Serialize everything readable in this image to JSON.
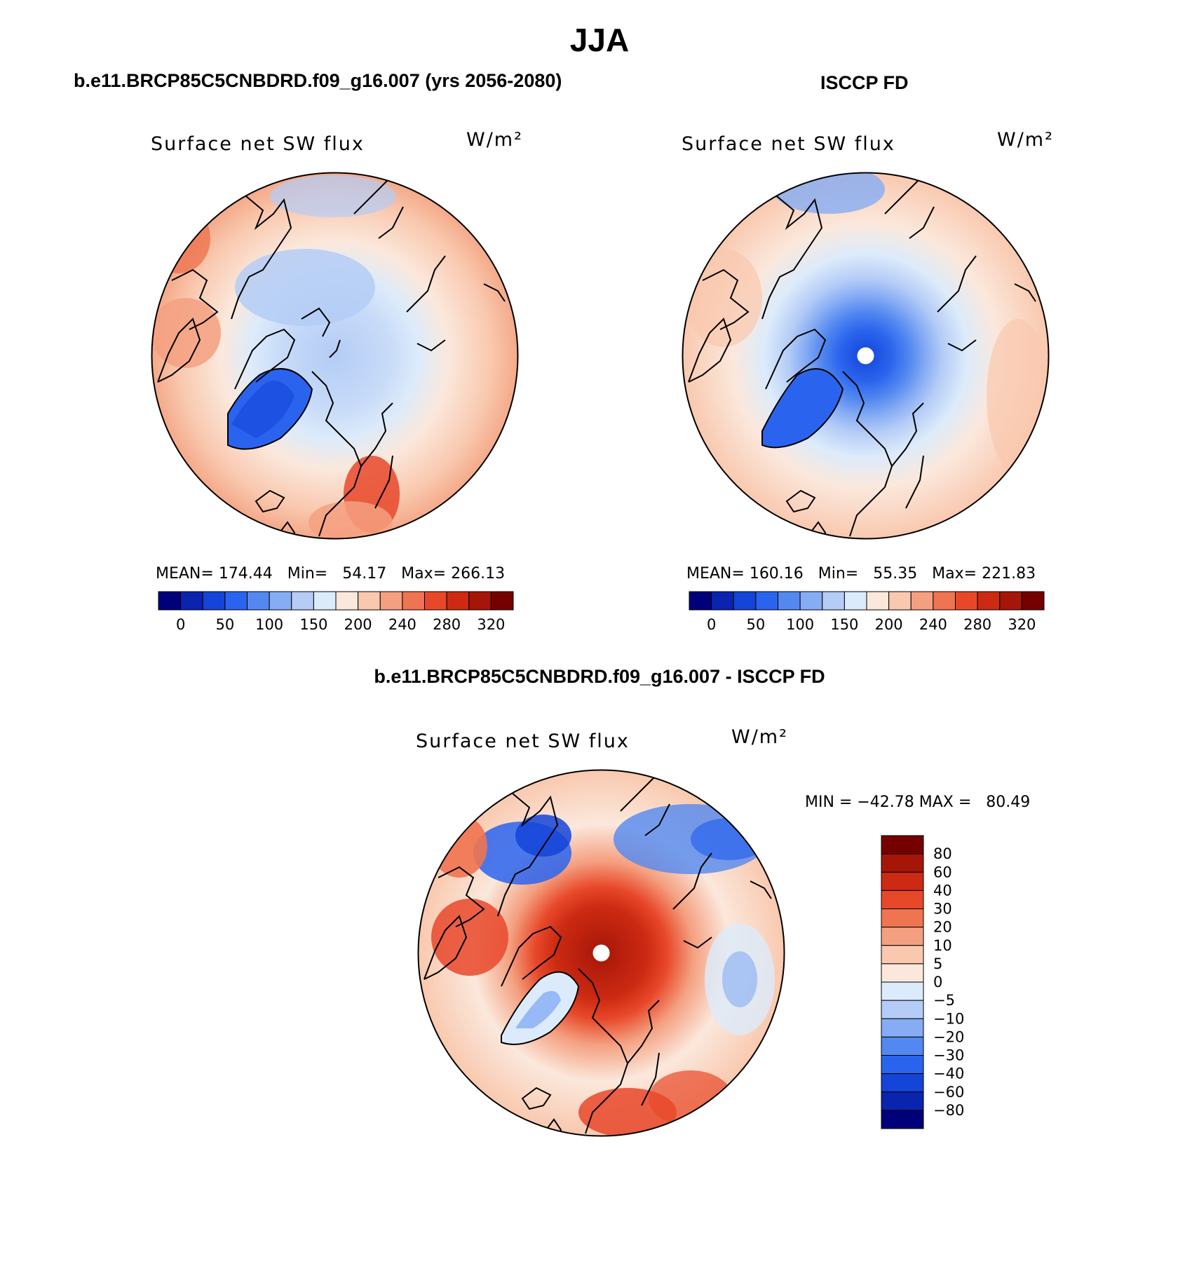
{
  "figure_title": "JJA",
  "panels": [
    {
      "title": "b.e11.BRCP85C5CNBDRD.f09_g16.007 (yrs 2056-2080)",
      "variable": "Surface net SW flux",
      "units": "W/m²",
      "stats": "MEAN= 174.44   Min=   54.17   Max= 266.13",
      "colorbar_labels": [
        "0",
        "50",
        "100",
        "150",
        "200",
        "240",
        "280",
        "320"
      ]
    },
    {
      "title": "ISCCP FD",
      "variable": "Surface net SW flux",
      "units": "W/m²",
      "stats": "MEAN= 160.16   Min=   55.35   Max= 221.83",
      "colorbar_labels": [
        "0",
        "50",
        "100",
        "150",
        "200",
        "240",
        "280",
        "320"
      ]
    },
    {
      "title": "b.e11.BRCP85C5CNBDRD.f09_g16.007 - ISCCP FD",
      "variable": "Surface net SW flux",
      "units": "W/m²",
      "stats": "MIN = −42.78 MAX =   80.49",
      "colorbar_labels": [
        "80",
        "60",
        "40",
        "30",
        "20",
        "10",
        "5",
        "0",
        "−5",
        "−10",
        "−20",
        "−30",
        "−40",
        "−60",
        "−80"
      ]
    }
  ],
  "colors": {
    "abs_scale": [
      "#00007a",
      "#0a24b0",
      "#1444d8",
      "#2a64ee",
      "#5288f0",
      "#86acf4",
      "#b4ccf6",
      "#dcebfb",
      "#fbe8dc",
      "#f9c8ae",
      "#f4a080",
      "#ef7450",
      "#e8482a",
      "#cc2a12",
      "#a61608",
      "#760000"
    ],
    "diff_scale": [
      "#00007a",
      "#0a24b0",
      "#1444d8",
      "#2a64ee",
      "#5288f0",
      "#86acf4",
      "#b4ccf6",
      "#dcebfb",
      "#fbe8dc",
      "#f9c8ae",
      "#f4a080",
      "#ef7450",
      "#e8482a",
      "#cc2a12",
      "#a61608",
      "#760000"
    ]
  }
}
